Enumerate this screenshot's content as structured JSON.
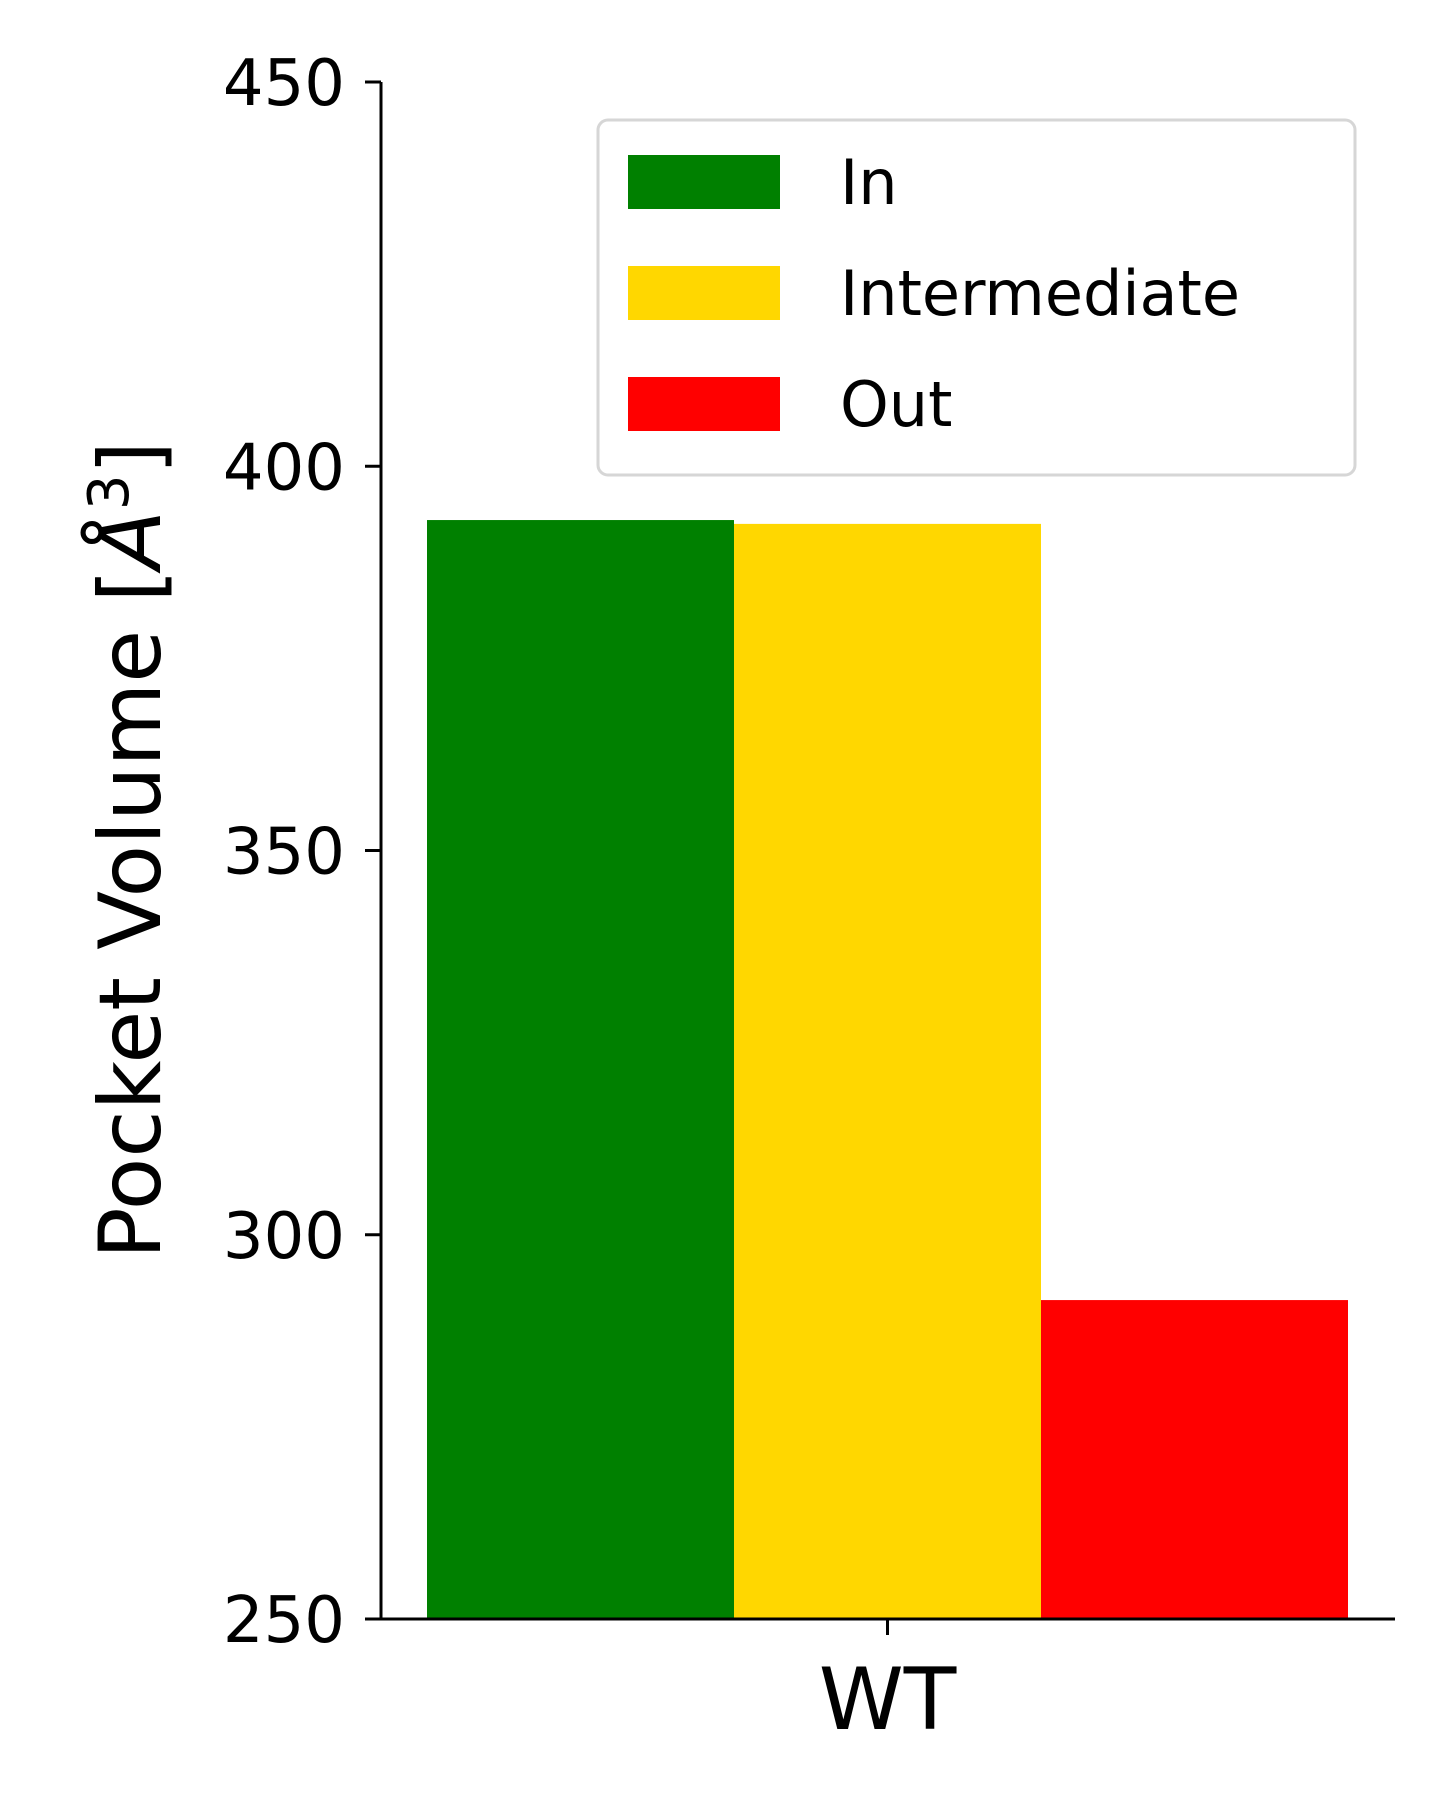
{
  "chart_data": {
    "type": "bar",
    "categories": [
      "WT"
    ],
    "series": [
      {
        "name": "In",
        "values": [
          393
        ],
        "color": "#008000"
      },
      {
        "name": "Intermediate",
        "values": [
          392.5
        ],
        "color": "#FFD700"
      },
      {
        "name": "Out",
        "values": [
          291.5
        ],
        "color": "#FF0000"
      }
    ],
    "ylabel_main": "Pocket Volume [",
    "ylabel_symbol": "Å",
    "ylabel_exp": "3",
    "ylabel_close": "]",
    "ylim": [
      250,
      450
    ],
    "yticks": [
      "250",
      "300",
      "350",
      "400",
      "450"
    ],
    "legend_position": "upper-right",
    "grid": false
  }
}
